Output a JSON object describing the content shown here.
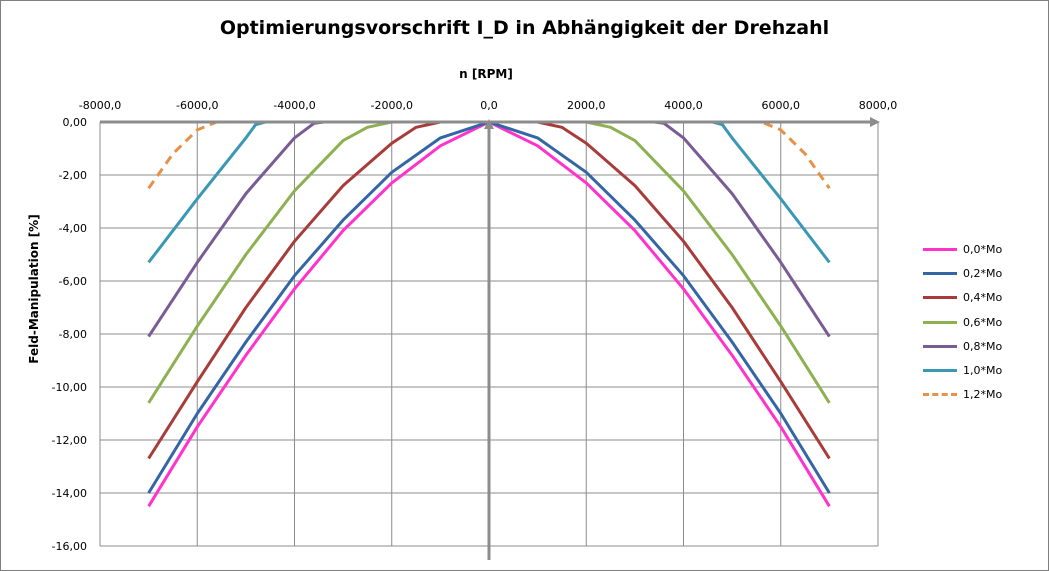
{
  "chart_data": {
    "type": "line",
    "title": "Optimierungsvorschrift I_D in Abhängigkeit der Drehzahl",
    "xlabel": "n [RPM]",
    "ylabel": "Feld-Manipulation [%]",
    "xlim": [
      -8000,
      8000
    ],
    "ylim": [
      -16,
      0
    ],
    "x_ticks": [
      -8000,
      -6000,
      -4000,
      -2000,
      0,
      2000,
      4000,
      6000,
      8000
    ],
    "x_tick_labels": [
      "-8000,0",
      "-6000,0",
      "-4000,0",
      "-2000,0",
      "0,0",
      "2000,0",
      "4000,0",
      "6000,0",
      "8000,0"
    ],
    "y_ticks": [
      0,
      -2,
      -4,
      -6,
      -8,
      -10,
      -12,
      -14,
      -16
    ],
    "y_tick_labels": [
      "0,00",
      "-2,00",
      "-4,00",
      "-6,00",
      "-8,00",
      "-10,00",
      "-12,00",
      "-14,00",
      "-16,00"
    ],
    "grid": true,
    "legend_position": "right",
    "series": [
      {
        "name": "0,0*Mo",
        "color": "#ff33cc",
        "dash": false,
        "x": [
          -7000,
          -6000,
          -5000,
          -4000,
          -3000,
          -2000,
          -1000,
          0,
          1000,
          2000,
          3000,
          4000,
          5000,
          6000,
          7000
        ],
        "y": [
          -14.5,
          -11.5,
          -8.8,
          -6.3,
          -4.1,
          -2.3,
          -0.9,
          0,
          -0.9,
          -2.3,
          -4.1,
          -6.3,
          -8.8,
          -11.5,
          -14.5
        ]
      },
      {
        "name": "0,2*Mo",
        "color": "#3466a5",
        "dash": false,
        "x": [
          -7000,
          -6000,
          -5000,
          -4000,
          -3000,
          -2000,
          -1000,
          0,
          1000,
          2000,
          3000,
          4000,
          5000,
          6000,
          7000
        ],
        "y": [
          -14.0,
          -11.0,
          -8.3,
          -5.8,
          -3.7,
          -1.9,
          -0.6,
          0,
          -0.6,
          -1.9,
          -3.7,
          -5.8,
          -8.3,
          -11.0,
          -14.0
        ]
      },
      {
        "name": "0,4*Mo",
        "color": "#a83c3a",
        "dash": false,
        "x": [
          -7000,
          -6000,
          -5000,
          -4000,
          -3000,
          -2000,
          -1500,
          -1000,
          1000,
          1500,
          2000,
          3000,
          4000,
          5000,
          6000,
          7000
        ],
        "y": [
          -12.7,
          -9.8,
          -7.0,
          -4.5,
          -2.4,
          -0.8,
          -0.2,
          0,
          0,
          -0.2,
          -0.8,
          -2.4,
          -4.5,
          -7.0,
          -9.8,
          -12.7
        ]
      },
      {
        "name": "0,6*Mo",
        "color": "#8db151",
        "dash": false,
        "x": [
          -7000,
          -6000,
          -5000,
          -4000,
          -3000,
          -2500,
          -2000,
          -1800,
          1800,
          2000,
          2500,
          3000,
          4000,
          5000,
          6000,
          7000
        ],
        "y": [
          -10.6,
          -7.7,
          -5.0,
          -2.6,
          -0.7,
          -0.2,
          0,
          0,
          0,
          0,
          -0.2,
          -0.7,
          -2.6,
          -5.0,
          -7.7,
          -10.6
        ]
      },
      {
        "name": "0,8*Mo",
        "color": "#7a5c94",
        "dash": false,
        "x": [
          -7000,
          -6000,
          -5000,
          -4000,
          -3600,
          -3400,
          3400,
          3600,
          4000,
          5000,
          6000,
          7000
        ],
        "y": [
          -8.1,
          -5.3,
          -2.7,
          -0.6,
          -0.05,
          0,
          0,
          -0.05,
          -0.6,
          -2.7,
          -5.3,
          -8.1
        ]
      },
      {
        "name": "1,0*Mo",
        "color": "#3a98b4",
        "dash": false,
        "x": [
          -7000,
          -6000,
          -5000,
          -4800,
          -4600,
          4600,
          4800,
          5000,
          6000,
          7000
        ],
        "y": [
          -5.3,
          -2.9,
          -0.6,
          -0.1,
          0,
          0,
          -0.1,
          -0.6,
          -2.9,
          -5.3
        ]
      },
      {
        "name": "1,2*Mo",
        "color": "#e69146",
        "dash": true,
        "x": [
          -7000,
          -6500,
          -6000,
          -5600,
          -5400,
          5400,
          5600,
          6000,
          6500,
          7000
        ],
        "y": [
          -2.5,
          -1.2,
          -0.3,
          0,
          0,
          0,
          0,
          -0.3,
          -1.2,
          -2.5
        ]
      }
    ]
  }
}
